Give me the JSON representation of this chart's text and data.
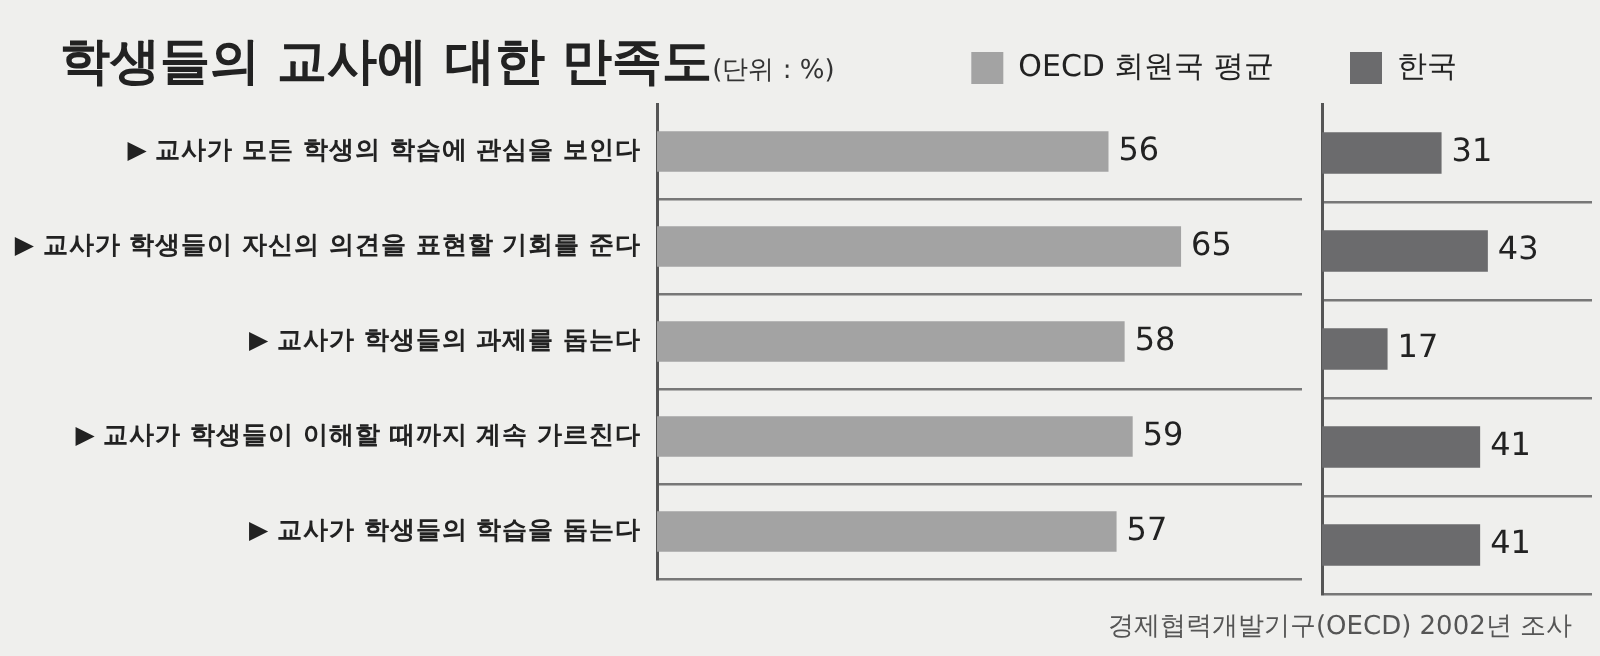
{
  "chart_data": [
    {
      "type": "bar",
      "orientation": "horizontal",
      "title": "학생들의 교사에 대한 만족도",
      "subtitle": "(단위 : %)",
      "categories": [
        "▶ 교사가 모든 학생의 학습에 관심을 보인다",
        "▶ 교사가 학생들이 자신의 의견을 표현할 기회를 준다",
        "▶ 교사가 학생들의 과제를 돕는다",
        "▶ 교사가 학생들이 이해할 때까지 계속 가르친다",
        "▶ 교사가 학생들의 학습을 돕는다"
      ],
      "series": [
        {
          "name": "OECD 회원국 평균",
          "color": "#a3a3a3",
          "values": [
            56,
            65,
            58,
            59,
            57
          ]
        }
      ],
      "xlim": [
        0,
        80
      ],
      "tick_labels": "y",
      "data_labels": true,
      "grid": "y",
      "legend": "top right"
    },
    {
      "type": "bar",
      "orientation": "horizontal",
      "categories": [
        null,
        null,
        null,
        null,
        null
      ],
      "series": [
        {
          "name": "한국",
          "color": "#6b6b6d",
          "values": [
            31,
            43,
            17,
            41,
            41
          ]
        }
      ],
      "xlim": [
        0,
        70
      ],
      "tick_labels": false,
      "data_labels": true,
      "grid": "y",
      "legend": "top left",
      "annotations": [
        "경제협력개발기구(OECD) 2002년 조사"
      ]
    }
  ]
}
